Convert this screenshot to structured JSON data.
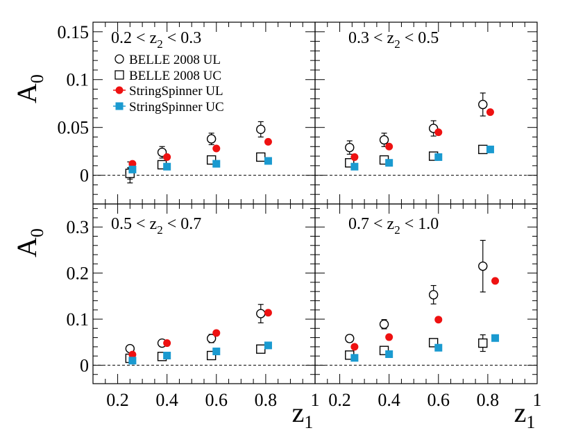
{
  "chart_data": [
    {
      "type": "scatter",
      "panel_label": {
        "pre": "0.2 < z",
        "sub": "2",
        "post": " < 0.3"
      },
      "ylabel": {
        "main": "A",
        "sub": "0"
      },
      "xlim": [
        0.1,
        1.0
      ],
      "ylim": [
        -0.03,
        0.16
      ],
      "yticks": [
        0,
        0.05,
        0.1,
        0.15
      ],
      "ytick_labels": [
        "0",
        "0.05",
        "0.1",
        "0.15"
      ],
      "legend": [
        {
          "label": "BELLE 2008 UL",
          "marker": "open-circle"
        },
        {
          "label": "BELLE 2008 UC",
          "marker": "open-square"
        },
        {
          "label": "StringSpinner UL",
          "marker": "red-circle"
        },
        {
          "label": "StringSpinner UC",
          "marker": "blue-square"
        }
      ],
      "series": [
        {
          "name": "BELLE 2008 UL",
          "marker": "open-circle",
          "x": [
            0.25,
            0.38,
            0.58,
            0.78
          ],
          "y": [
            0.003,
            0.024,
            0.038,
            0.048
          ],
          "err": [
            0.011,
            0.006,
            0.006,
            0.008
          ]
        },
        {
          "name": "BELLE 2008 UC",
          "marker": "open-square",
          "x": [
            0.25,
            0.38,
            0.58,
            0.78
          ],
          "y": [
            0.002,
            0.011,
            0.016,
            0.019
          ],
          "err": [
            0.006,
            0.004,
            0.003,
            0.003
          ]
        },
        {
          "name": "StringSpinner UL",
          "marker": "red-circle",
          "x": [
            0.26,
            0.4,
            0.6,
            0.81
          ],
          "y": [
            0.012,
            0.019,
            0.028,
            0.035
          ]
        },
        {
          "name": "StringSpinner UC",
          "marker": "blue-square",
          "x": [
            0.26,
            0.4,
            0.6,
            0.81
          ],
          "y": [
            0.006,
            0.009,
            0.012,
            0.015
          ]
        }
      ]
    },
    {
      "type": "scatter",
      "panel_label": {
        "pre": "0.3 < z",
        "sub": "2",
        "post": " < 0.5"
      },
      "xlim": [
        0.1,
        1.0
      ],
      "ylim": [
        -0.03,
        0.16
      ],
      "series": [
        {
          "name": "BELLE 2008 UL",
          "marker": "open-circle",
          "x": [
            0.24,
            0.38,
            0.58,
            0.78
          ],
          "y": [
            0.029,
            0.037,
            0.049,
            0.074
          ],
          "err": [
            0.007,
            0.007,
            0.008,
            0.012
          ]
        },
        {
          "name": "BELLE 2008 UC",
          "marker": "open-square",
          "x": [
            0.24,
            0.38,
            0.58,
            0.78
          ],
          "y": [
            0.013,
            0.016,
            0.02,
            0.027
          ],
          "err": [
            0.003,
            0.003,
            0.003,
            0.004
          ]
        },
        {
          "name": "StringSpinner UL",
          "marker": "red-circle",
          "x": [
            0.26,
            0.4,
            0.6,
            0.81
          ],
          "y": [
            0.019,
            0.03,
            0.045,
            0.066
          ]
        },
        {
          "name": "StringSpinner UC",
          "marker": "blue-square",
          "x": [
            0.26,
            0.4,
            0.6,
            0.81
          ],
          "y": [
            0.009,
            0.013,
            0.019,
            0.027
          ]
        }
      ]
    },
    {
      "type": "scatter",
      "panel_label": {
        "pre": "0.5 < z",
        "sub": "2",
        "post": " < 0.7"
      },
      "ylabel": {
        "main": "A",
        "sub": "0"
      },
      "xlabel": {
        "main": "z",
        "sub": "1"
      },
      "xlim": [
        0.1,
        1.0
      ],
      "ylim": [
        -0.04,
        0.35
      ],
      "xticks": [
        0.2,
        0.4,
        0.6,
        0.8,
        1.0
      ],
      "xtick_labels": [
        "0.2",
        "0.4",
        "0.6",
        "0.8",
        "1"
      ],
      "yticks": [
        0,
        0.1,
        0.2,
        0.3
      ],
      "ytick_labels": [
        "0",
        "0.1",
        "0.2",
        "0.3"
      ],
      "series": [
        {
          "name": "BELLE 2008 UL",
          "marker": "open-circle",
          "x": [
            0.25,
            0.38,
            0.58,
            0.78
          ],
          "y": [
            0.036,
            0.048,
            0.058,
            0.112
          ],
          "err": [
            0.006,
            0.007,
            0.009,
            0.02
          ]
        },
        {
          "name": "BELLE 2008 UC",
          "marker": "open-square",
          "x": [
            0.25,
            0.38,
            0.58,
            0.78
          ],
          "y": [
            0.015,
            0.019,
            0.021,
            0.035
          ],
          "err": [
            0.004,
            0.004,
            0.005,
            0.006
          ]
        },
        {
          "name": "StringSpinner UL",
          "marker": "red-circle",
          "x": [
            0.26,
            0.4,
            0.6,
            0.81
          ],
          "y": [
            0.023,
            0.048,
            0.07,
            0.114
          ]
        },
        {
          "name": "StringSpinner UC",
          "marker": "blue-square",
          "x": [
            0.26,
            0.4,
            0.6,
            0.81
          ],
          "y": [
            0.01,
            0.021,
            0.03,
            0.043
          ]
        }
      ]
    },
    {
      "type": "scatter",
      "panel_label": {
        "pre": "0.7 < z",
        "sub": "2",
        "post": " < 1.0"
      },
      "xlabel": {
        "main": "z",
        "sub": "1"
      },
      "xlim": [
        0.1,
        1.0
      ],
      "ylim": [
        -0.04,
        0.35
      ],
      "xticks": [
        0.2,
        0.4,
        0.6,
        0.8,
        1.0
      ],
      "xtick_labels": [
        "0.2",
        "0.4",
        "0.6",
        "0.8",
        "1"
      ],
      "series": [
        {
          "name": "BELLE 2008 UL",
          "marker": "open-circle",
          "x": [
            0.24,
            0.38,
            0.58,
            0.78
          ],
          "y": [
            0.058,
            0.089,
            0.153,
            0.215
          ],
          "err": [
            0.008,
            0.01,
            0.02,
            0.056
          ]
        },
        {
          "name": "BELLE 2008 UC",
          "marker": "open-square",
          "x": [
            0.24,
            0.38,
            0.58,
            0.78
          ],
          "y": [
            0.022,
            0.032,
            0.049,
            0.048
          ],
          "err": [
            0.006,
            0.006,
            0.007,
            0.018
          ]
        },
        {
          "name": "StringSpinner UL",
          "marker": "red-circle",
          "x": [
            0.26,
            0.4,
            0.6,
            0.83
          ],
          "y": [
            0.04,
            0.061,
            0.099,
            0.183
          ]
        },
        {
          "name": "StringSpinner UC",
          "marker": "blue-square",
          "x": [
            0.26,
            0.4,
            0.6,
            0.83
          ],
          "y": [
            0.016,
            0.024,
            0.038,
            0.059
          ]
        }
      ]
    }
  ],
  "colors": {
    "stringspinner_ul": "#ee1111",
    "stringspinner_uc": "#1a9ad0",
    "axis": "#000000"
  }
}
